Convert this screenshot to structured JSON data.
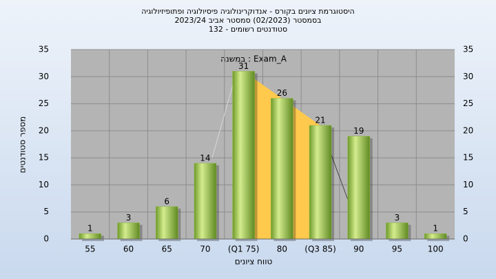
{
  "chart_data": {
    "type": "bar",
    "title": "היסטוגרמת ציונים בקורס - אנדוקרינולוגיה פיסיולוגיה ופתופיזיולוגיה",
    "subtitle": "בסמסטר  (02/2023)  סמסטר אביב 2023/24",
    "subtitle2": "סטודנטים רשומים - 132",
    "annotation": "במשנה : Exam_A",
    "x_label": "טווח ציונים",
    "y_label": "מספר סטודנטים",
    "categories": [
      "55",
      "60",
      "65",
      "70",
      "(Q1 75)",
      "80",
      "(Q3 85)",
      "90",
      "95",
      "100"
    ],
    "values": [
      1,
      3,
      6,
      14,
      31,
      26,
      21,
      19,
      3,
      1
    ],
    "color": "#8db83e",
    "ylim": [
      0,
      35
    ],
    "yticks": [
      0,
      5,
      10,
      15,
      20,
      25,
      30,
      35
    ],
    "y2lim": [
      0,
      35
    ],
    "y2ticks": [
      0,
      5,
      10,
      15,
      20,
      25,
      30,
      35
    ],
    "grid": true
  }
}
